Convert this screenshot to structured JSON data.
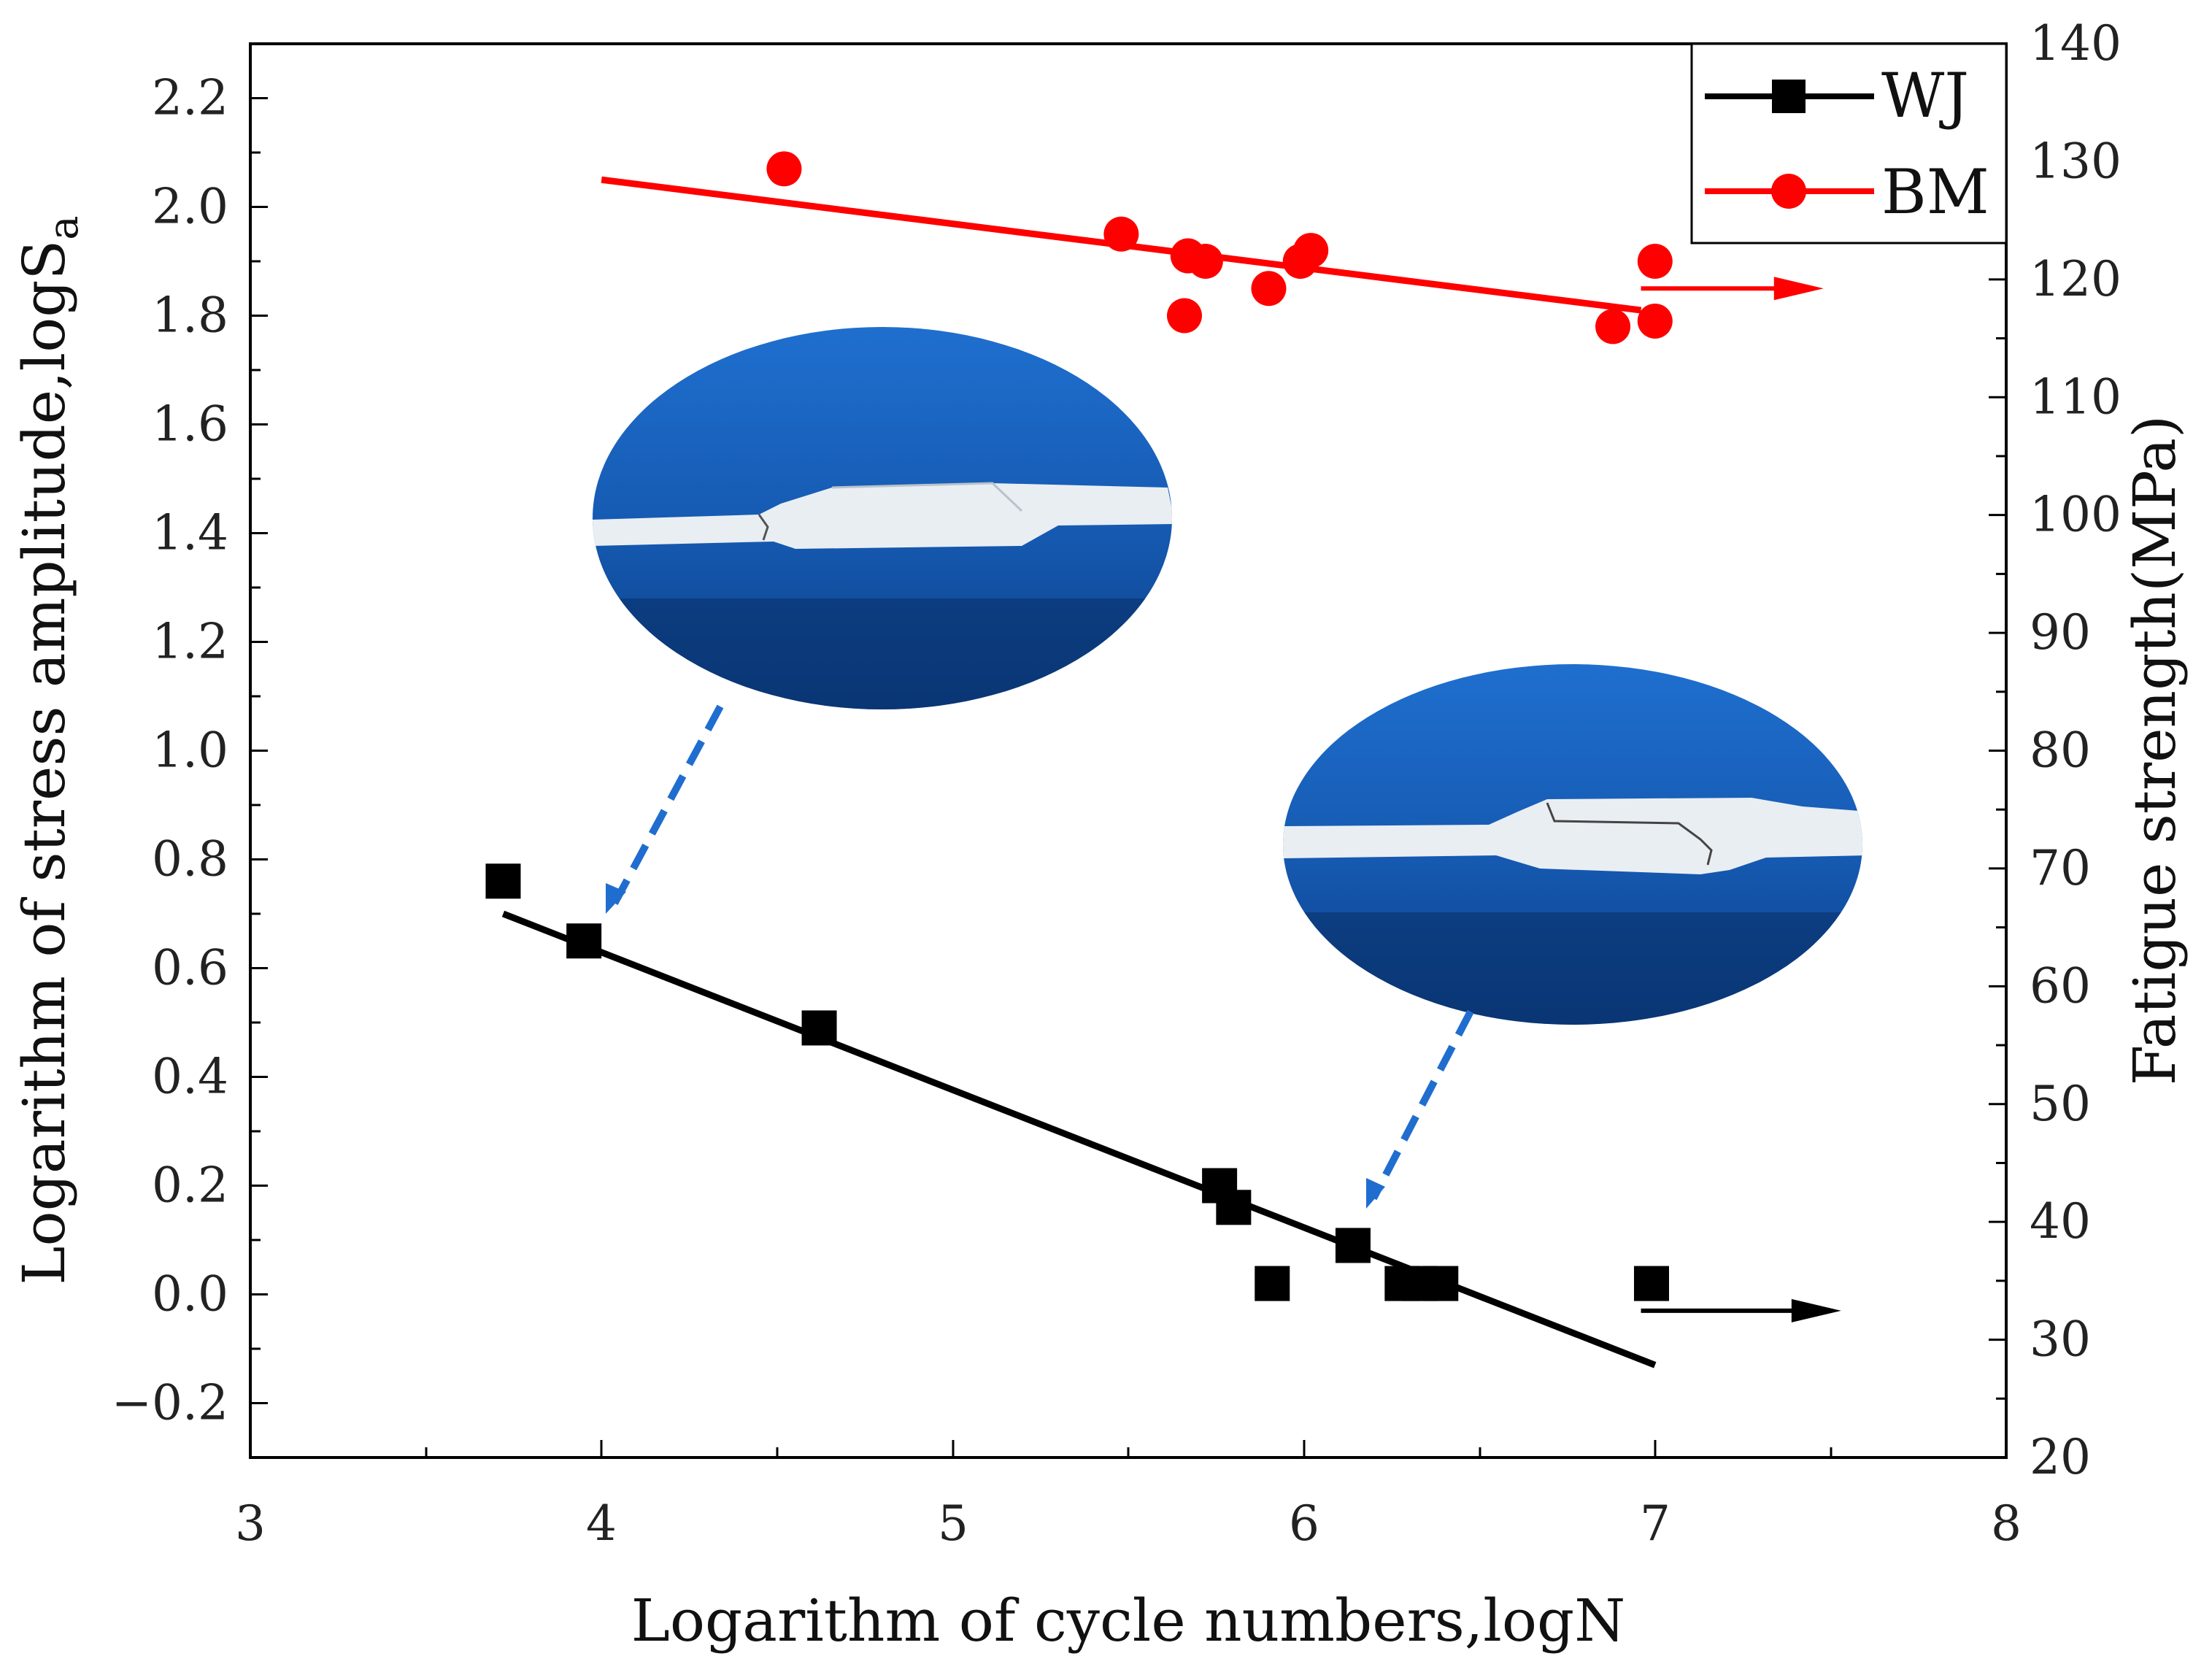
{
  "chart_data": {
    "type": "scatter",
    "title": "",
    "xlabel": "Logarithm of cycle numbers,logN",
    "ylabel": "Logarithm of stress amplitude,logS",
    "ylabel_subscript": "a",
    "y2label": "Fatigue strength(MPa)",
    "xlim": [
      3,
      8
    ],
    "ylim": [
      -0.3,
      2.3
    ],
    "y2lim": [
      20,
      140
    ],
    "x_ticks": [
      "3",
      "4",
      "5",
      "6",
      "7",
      "8"
    ],
    "y_ticks": [
      "-0.2",
      "0.0",
      "0.2",
      "0.4",
      "0.6",
      "0.8",
      "1.0",
      "1.2",
      "1.4",
      "1.6",
      "1.8",
      "2.0",
      "2.2"
    ],
    "y2_ticks": [
      "20",
      "30",
      "40",
      "50",
      "60",
      "70",
      "80",
      "90",
      "100",
      "110",
      "120",
      "130",
      "140"
    ],
    "legend_position": "top-right",
    "series": [
      {
        "name": "WJ",
        "color": "#000000",
        "marker": "square",
        "x": [
          3.72,
          3.95,
          4.62,
          5.76,
          5.8,
          5.91,
          6.14,
          6.28,
          6.33,
          6.39,
          6.99
        ],
        "y": [
          0.76,
          0.65,
          0.49,
          0.2,
          0.16,
          0.02,
          0.09,
          0.02,
          0.02,
          0.02,
          0.02
        ],
        "fit": {
          "x": [
            3.72,
            7.0
          ],
          "y": [
            0.7,
            -0.13
          ]
        },
        "runout_arrow": {
          "x": [
            6.96,
            7.53
          ],
          "y": [
            -0.03,
            -0.03
          ]
        }
      },
      {
        "name": "BM",
        "color": "#ff0000",
        "marker": "circle",
        "x": [
          4.52,
          5.48,
          5.66,
          5.67,
          5.72,
          5.9,
          5.99,
          6.02,
          6.88,
          7.0,
          7.0
        ],
        "y": [
          2.07,
          1.95,
          1.8,
          1.91,
          1.9,
          1.85,
          1.9,
          1.92,
          1.78,
          1.79,
          1.9
        ],
        "fit": {
          "x": [
            4.0,
            6.96
          ],
          "y": [
            2.05,
            1.81
          ]
        },
        "runout_arrow": {
          "x": [
            6.96,
            7.48
          ],
          "y": [
            1.85,
            1.85
          ]
        }
      }
    ]
  }
}
